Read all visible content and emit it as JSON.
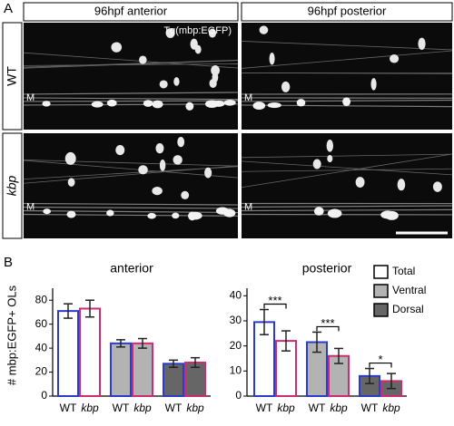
{
  "panel_a": {
    "label": "A",
    "columns": [
      "96hpf anterior",
      "96hpf posterior"
    ],
    "rows": [
      "WT",
      "kbp"
    ],
    "marker": "Tg(mbp:EGFP)",
    "structure_label": "M"
  },
  "panel_b": {
    "label": "B",
    "y_label": "# mbp:EGFP+ OLs",
    "legend": [
      {
        "name": "Total",
        "fill": "#ffffff"
      },
      {
        "name": "Ventral",
        "fill": "#b3b3b3"
      },
      {
        "name": "Dorsal",
        "fill": "#666666"
      }
    ]
  },
  "chart_data": [
    {
      "type": "bar",
      "title": "anterior",
      "ylim": [
        0,
        90
      ],
      "yticks": [
        0,
        20,
        40,
        60,
        80
      ],
      "series": [
        {
          "name": "WT",
          "color": "#2a3cc8",
          "values": [
            71,
            44,
            27
          ],
          "errors": [
            6,
            3,
            3
          ]
        },
        {
          "name": "kbp",
          "color": "#cc2d6e",
          "values": [
            73,
            44,
            28
          ],
          "errors": [
            7,
            4,
            4
          ]
        }
      ]
    },
    {
      "type": "bar",
      "title": "posterior",
      "ylim": [
        0,
        43
      ],
      "yticks": [
        0,
        10,
        20,
        30,
        40
      ],
      "series": [
        {
          "name": "WT",
          "color": "#2a3cc8",
          "values": [
            29.5,
            21.5,
            8
          ],
          "errors": [
            5,
            4,
            3
          ]
        },
        {
          "name": "kbp",
          "color": "#cc2d6e",
          "values": [
            22,
            16,
            6
          ],
          "errors": [
            4,
            3,
            3
          ]
        }
      ],
      "annotations": [
        "***",
        "***",
        "*"
      ]
    }
  ]
}
